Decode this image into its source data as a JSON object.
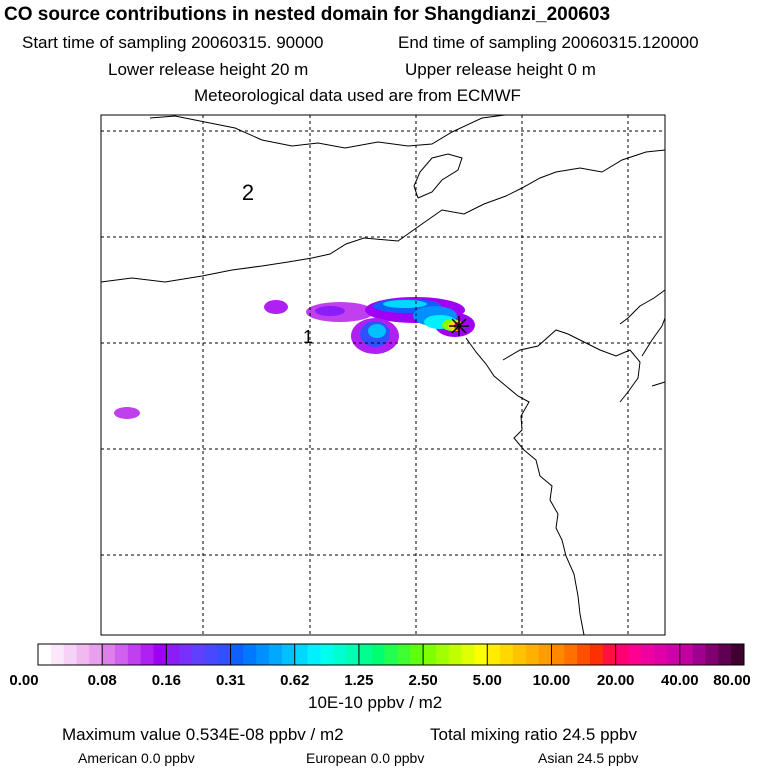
{
  "header": {
    "title": "CO  source contributions in nested domain for Shangdianzi_200603",
    "start_time": "Start time of sampling 20060315. 90000",
    "end_time": "End time of sampling 20060315.120000",
    "lower_release": "Lower release height   20 m",
    "upper_release": "Upper release height    0 m",
    "met_data": "Meteorological data used are from ECMWF"
  },
  "map": {
    "region_labels": [
      "2",
      "1"
    ]
  },
  "colorbar": {
    "tick_labels": [
      "0.00",
      "0.08",
      "0.16",
      "0.31",
      "0.62",
      "1.25",
      "2.50",
      "5.00",
      "10.00",
      "20.00",
      "40.00",
      "80.00"
    ],
    "unit": "10E-10 ppbv / m2",
    "colors": [
      "#ffffff",
      "#fbe8fb",
      "#f6d2f6",
      "#f0baf0",
      "#e8a0ee",
      "#de80ec",
      "#d060ee",
      "#c040f0",
      "#b020f2",
      "#a000f4",
      "#8c1cf8",
      "#7830fa",
      "#6040fc",
      "#4848fe",
      "#3050fe",
      "#1060fe",
      "#0078ff",
      "#0090ff",
      "#00a8ff",
      "#00c0ff",
      "#00d8ff",
      "#00f0ff",
      "#00ffee",
      "#00ffd0",
      "#00ffb0",
      "#00ff90",
      "#00ff70",
      "#20ff50",
      "#40ff30",
      "#60ff10",
      "#80ff00",
      "#a0ff00",
      "#c0ff00",
      "#e0ff00",
      "#ffff00",
      "#ffec00",
      "#ffd800",
      "#ffc400",
      "#ffb000",
      "#ff9c00",
      "#ff8800",
      "#ff7000",
      "#ff5000",
      "#ff3000",
      "#ff1040",
      "#ff0070",
      "#ff0090",
      "#f000a0",
      "#e000a8",
      "#d000a8",
      "#c000a0",
      "#a00090",
      "#800070",
      "#600050",
      "#400030"
    ]
  },
  "footer": {
    "max_value": "Maximum value  0.534E-08 ppbv / m2",
    "total": "Total mixing ratio      24.5 ppbv",
    "american": "American        0.0 ppbv",
    "european": "European        0.0 ppbv",
    "asian": "Asian      24.5 ppbv"
  }
}
